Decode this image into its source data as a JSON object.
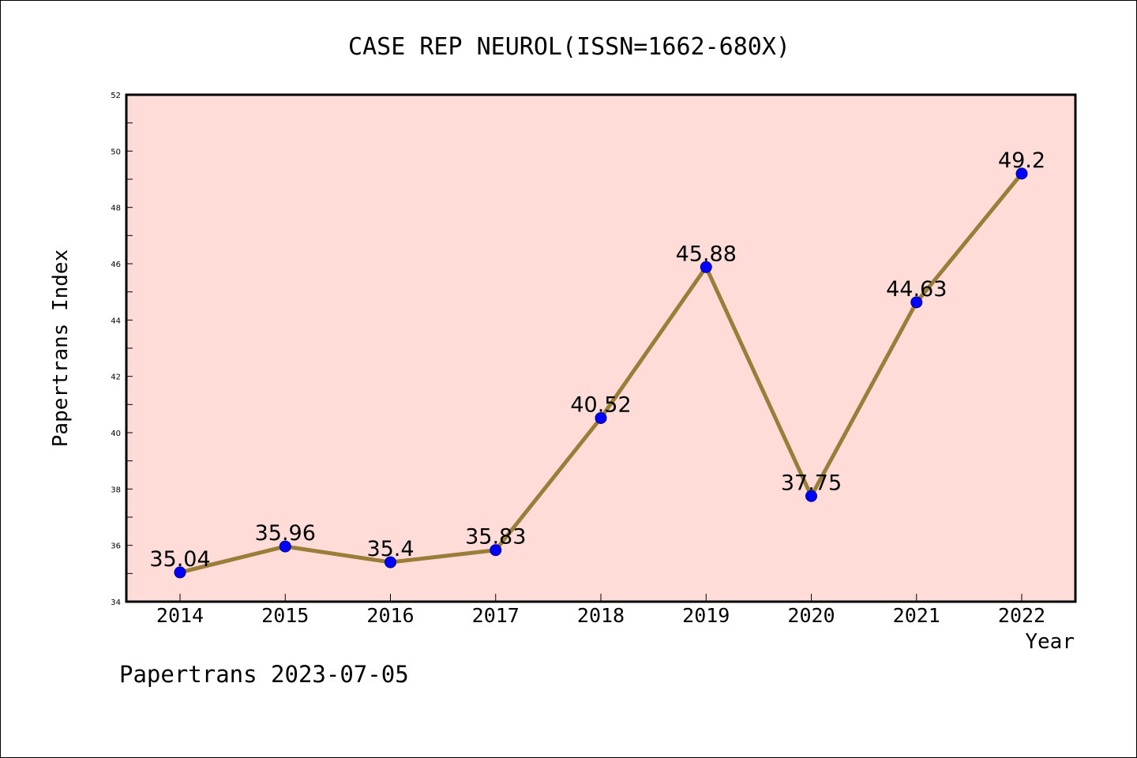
{
  "chart_data": {
    "type": "line",
    "title": "CASE REP NEUROL(ISSN=1662-680X)",
    "xlabel": "Year",
    "ylabel": "Papertrans Index",
    "categories": [
      "2014",
      "2015",
      "2016",
      "2017",
      "2018",
      "2019",
      "2020",
      "2021",
      "2022"
    ],
    "series": [
      {
        "values": [
          35.04,
          35.96,
          35.4,
          35.83,
          40.52,
          45.88,
          37.75,
          44.63,
          49.2
        ],
        "data_labels": [
          "35.04",
          "35.96",
          "35.4",
          "35.83",
          "40.52",
          "45.88",
          "37.75",
          "44.63",
          "49.2"
        ]
      }
    ],
    "ylim": [
      34,
      52
    ],
    "yticks": [
      "34",
      "36",
      "38",
      "40",
      "42",
      "44",
      "46",
      "48",
      "50",
      "52"
    ],
    "grid": false,
    "colors": {
      "plot_background": "#ffdcd8",
      "line": "#9b7d3a",
      "marker": "#0000ff",
      "axes": "#000000"
    }
  },
  "footer": {
    "text": "Papertrans 2023-07-05"
  }
}
